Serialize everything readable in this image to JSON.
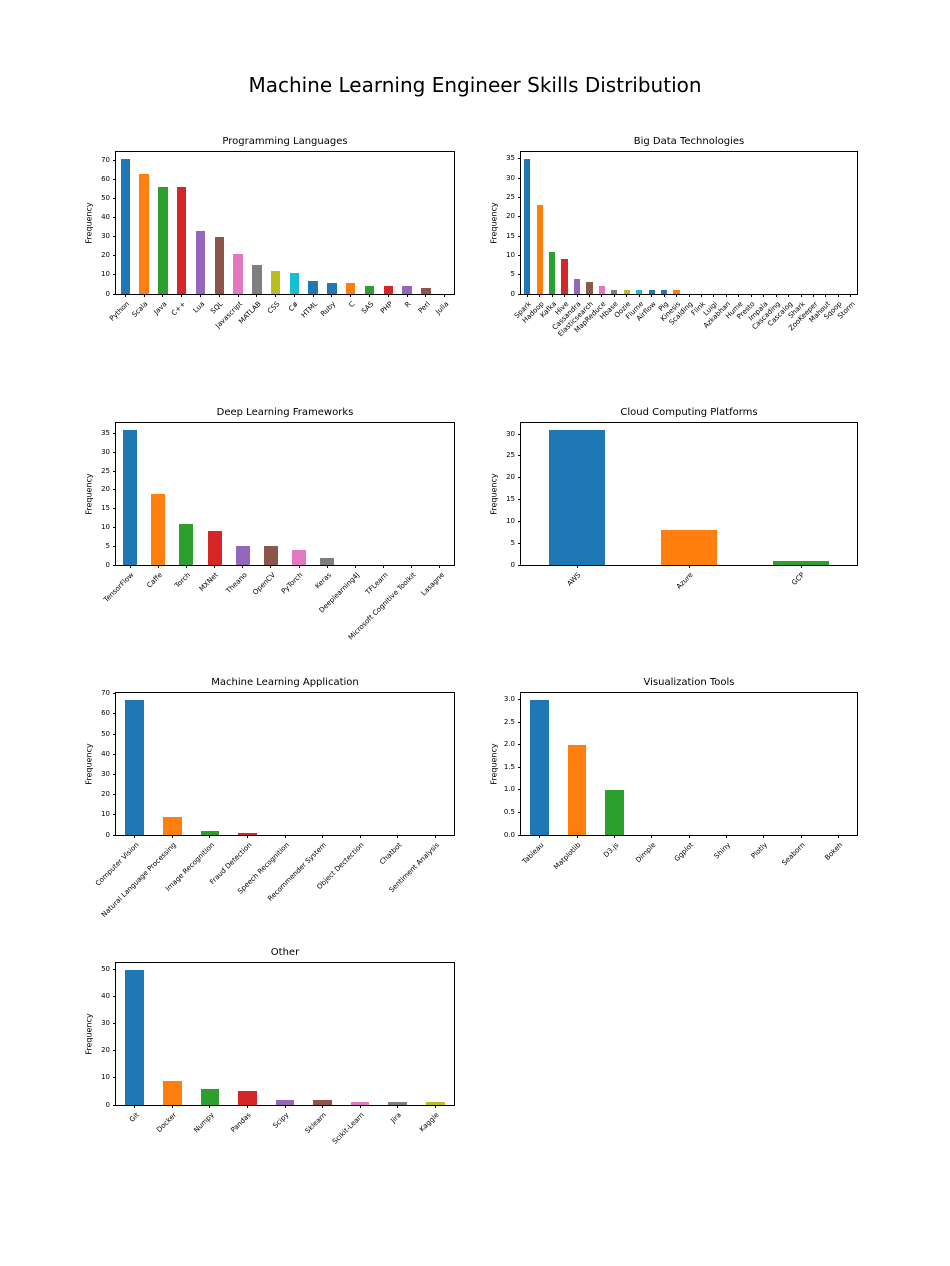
{
  "figure": {
    "title": "Machine Learning Engineer Skills Distribution"
  },
  "palette": [
    "#1f77b4",
    "#ff7f0e",
    "#2ca02c",
    "#d62728",
    "#9467bd",
    "#8c564b",
    "#e377c2",
    "#7f7f7f",
    "#bcbd22",
    "#17becf",
    "#1f77b4"
  ],
  "chart_data": [
    {
      "type": "bar",
      "title": "Programming Languages",
      "ylabel": "Frequency",
      "categories": [
        "Python",
        "Scala",
        "Java",
        "C++",
        "Lua",
        "SQL",
        "Javascript",
        "MATLAB",
        "CSS",
        "C#",
        "HTML",
        "Ruby",
        "C",
        "SAS",
        "PHP",
        "R",
        "Perl",
        "Julia"
      ],
      "values": [
        71,
        63,
        56,
        56,
        33,
        30,
        21,
        15,
        12,
        11,
        7,
        6,
        6,
        4,
        4,
        4,
        3,
        0
      ],
      "yticks": [
        0,
        10,
        20,
        30,
        40,
        50,
        60,
        70
      ],
      "ytick_labels": [
        "0",
        "10",
        "20",
        "30",
        "40",
        "50",
        "60",
        "70"
      ],
      "ylim": [
        0,
        74.55
      ],
      "grid": false,
      "legend": null
    },
    {
      "type": "bar",
      "title": "Big Data Technologies",
      "ylabel": "Frequency",
      "categories": [
        "Spark",
        "Hadoop",
        "Kafka",
        "Hive",
        "Cassandra",
        "Elasticsearch",
        "MapReduce",
        "Hbase",
        "Oozie",
        "Flume",
        "Airflow",
        "Pig",
        "Kinesis",
        "Scalding",
        "Flink",
        "Luigi",
        "Azkabhan",
        "Hume",
        "Presto",
        "Impala",
        "Cascading",
        "Cascalog",
        "Shark",
        "ZooKeeper",
        "Mahout",
        "Sqoop",
        "Storm"
      ],
      "values": [
        35,
        23,
        11,
        9,
        4,
        3,
        2,
        1,
        1,
        1,
        1,
        1,
        1,
        0,
        0,
        0,
        0,
        0,
        0,
        0,
        0,
        0,
        0,
        0,
        0,
        0,
        0
      ],
      "yticks": [
        0,
        5,
        10,
        15,
        20,
        25,
        30,
        35
      ],
      "ytick_labels": [
        "0",
        "5",
        "10",
        "15",
        "20",
        "25",
        "30",
        "35"
      ],
      "ylim": [
        0,
        36.75
      ],
      "grid": false,
      "legend": null
    },
    {
      "type": "bar",
      "title": "Deep Learning Frameworks",
      "ylabel": "Frequency",
      "categories": [
        "TensorFlow",
        "Caffe",
        "Torch",
        "MXNet",
        "Theano",
        "OpenCV",
        "PyTorch",
        "Keras",
        "Deeplearning4J",
        "TFLearn",
        "Microsoft Cognitive Toolkit",
        "Lasagne"
      ],
      "values": [
        36,
        19,
        11,
        9,
        5,
        5,
        4,
        2,
        0,
        0,
        0,
        0
      ],
      "yticks": [
        0,
        5,
        10,
        15,
        20,
        25,
        30,
        35
      ],
      "ytick_labels": [
        "0",
        "5",
        "10",
        "15",
        "20",
        "25",
        "30",
        "35"
      ],
      "ylim": [
        0,
        37.8
      ],
      "grid": false,
      "legend": null
    },
    {
      "type": "bar",
      "title": "Cloud Computing Platforms",
      "ylabel": "Frequency",
      "categories": [
        "AWS",
        "Azure",
        "GCP"
      ],
      "values": [
        31,
        8,
        1
      ],
      "yticks": [
        0,
        5,
        10,
        15,
        20,
        25,
        30
      ],
      "ytick_labels": [
        "0",
        "5",
        "10",
        "15",
        "20",
        "25",
        "30"
      ],
      "ylim": [
        0,
        32.55
      ],
      "grid": false,
      "legend": null
    },
    {
      "type": "bar",
      "title": "Machine Learning Application",
      "ylabel": "Frequency",
      "categories": [
        "Computer Vision",
        "Natural Language Processing",
        "Image Recognition",
        "Fraud Detection",
        "Speech Recognition",
        "Recommender System",
        "Object Dectection",
        "Chatbot",
        "Sentiment Analysis"
      ],
      "values": [
        67,
        9,
        2,
        1,
        0,
        0,
        0,
        0,
        0
      ],
      "yticks": [
        0,
        10,
        20,
        30,
        40,
        50,
        60,
        70
      ],
      "ytick_labels": [
        "0",
        "10",
        "20",
        "30",
        "40",
        "50",
        "60",
        "70"
      ],
      "ylim": [
        0,
        70.35
      ],
      "grid": false,
      "legend": null
    },
    {
      "type": "bar",
      "title": "Visualization Tools",
      "ylabel": "Frequency",
      "categories": [
        "Tableau",
        "Matplotlib",
        "D3.js",
        "Dimple",
        "Ggplot",
        "Shiny",
        "Plotly",
        "Seaborn",
        "Bokeh"
      ],
      "values": [
        3,
        2,
        1,
        0,
        0,
        0,
        0,
        0,
        0
      ],
      "yticks": [
        0,
        0.5,
        1.0,
        1.5,
        2.0,
        2.5,
        3.0
      ],
      "ytick_labels": [
        "0.0",
        "0.5",
        "1.0",
        "1.5",
        "2.0",
        "2.5",
        "3.0"
      ],
      "ylim": [
        0,
        3.15
      ],
      "grid": false,
      "legend": null
    },
    {
      "type": "bar",
      "title": "Other",
      "ylabel": "Frequency",
      "categories": [
        "Git",
        "Docker",
        "Numpy",
        "Pandas",
        "Scipy",
        "Sklearn",
        "Scikit-Learn",
        "Jira",
        "Kaggle"
      ],
      "values": [
        50,
        9,
        6,
        5,
        2,
        2,
        1,
        1,
        1
      ],
      "yticks": [
        0,
        10,
        20,
        30,
        40,
        50
      ],
      "ytick_labels": [
        "0",
        "10",
        "20",
        "30",
        "40",
        "50"
      ],
      "ylim": [
        0,
        52.5
      ],
      "grid": false,
      "legend": null
    }
  ]
}
